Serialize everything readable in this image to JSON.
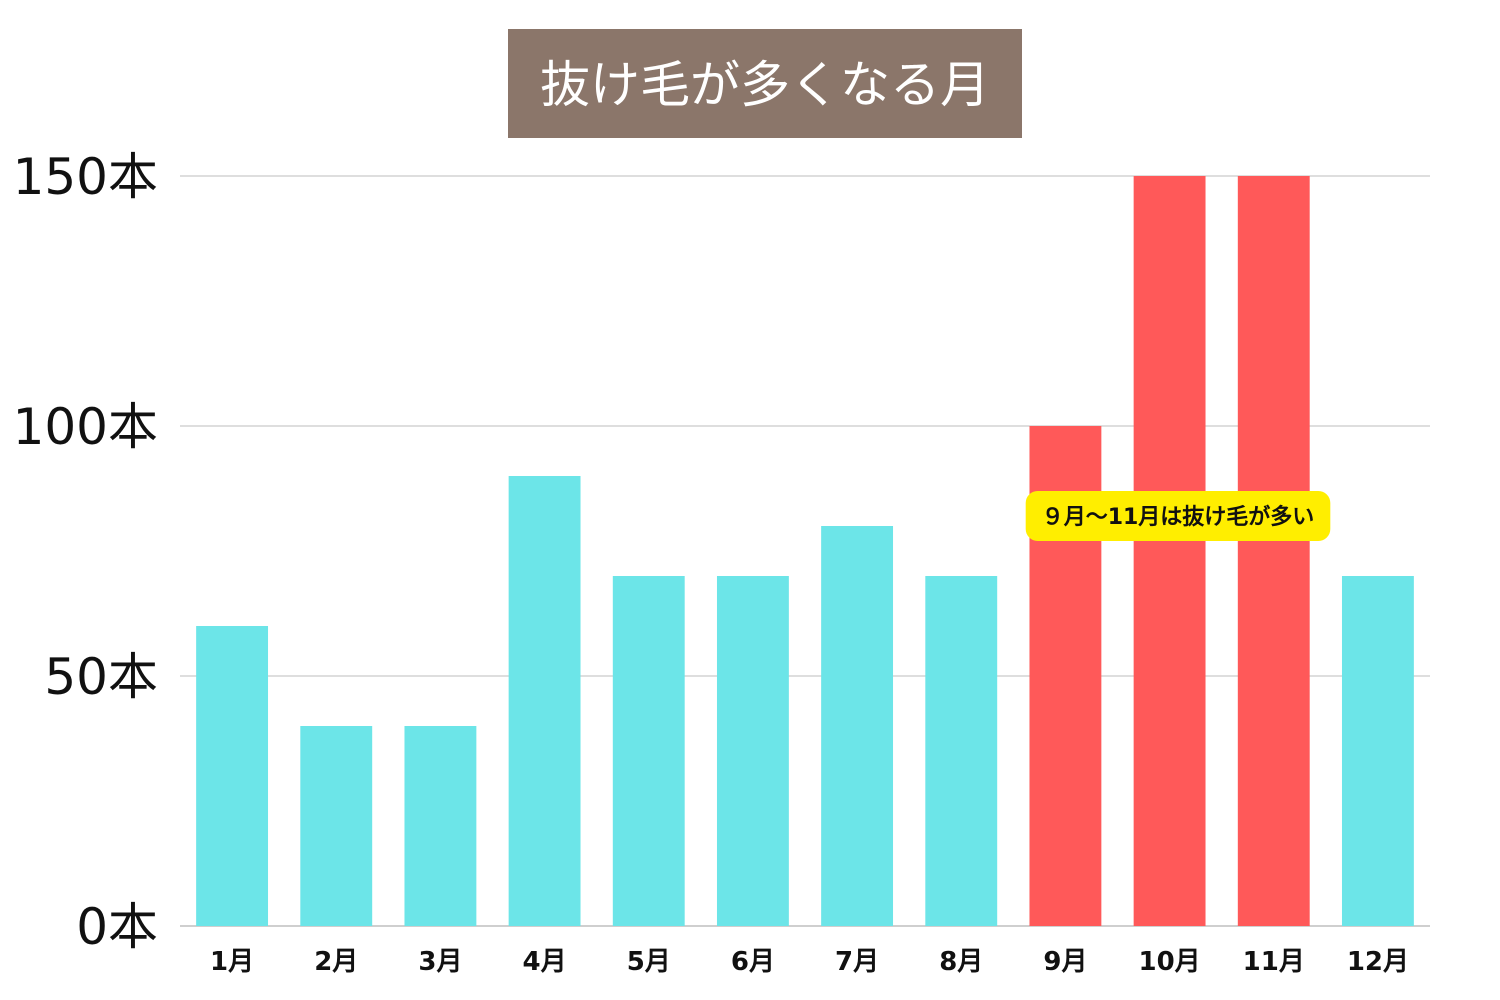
{
  "chart_data": {
    "type": "bar",
    "title": "抜け毛が多くなる月",
    "categories": [
      "1月",
      "2月",
      "3月",
      "4月",
      "5月",
      "6月",
      "7月",
      "8月",
      "9月",
      "10月",
      "11月",
      "12月"
    ],
    "values": [
      60,
      40,
      40,
      90,
      70,
      70,
      80,
      70,
      100,
      150,
      150,
      70
    ],
    "highlighted": [
      false,
      false,
      false,
      false,
      false,
      false,
      false,
      false,
      true,
      true,
      true,
      false
    ],
    "ylim": [
      0,
      150
    ],
    "yticks": [
      0,
      50,
      100,
      150
    ],
    "ytick_labels": [
      "0本",
      "50本",
      "100本",
      "150本"
    ],
    "xlabel": "",
    "ylabel": "",
    "grid": true,
    "colors": {
      "normal": "#6ce5e8",
      "highlight": "#ff5959",
      "title_bg": "#8b766a",
      "callout_bg": "#ffee00"
    },
    "annotation": {
      "text": "９月〜11月は抜け毛が多い",
      "value": 82
    }
  }
}
